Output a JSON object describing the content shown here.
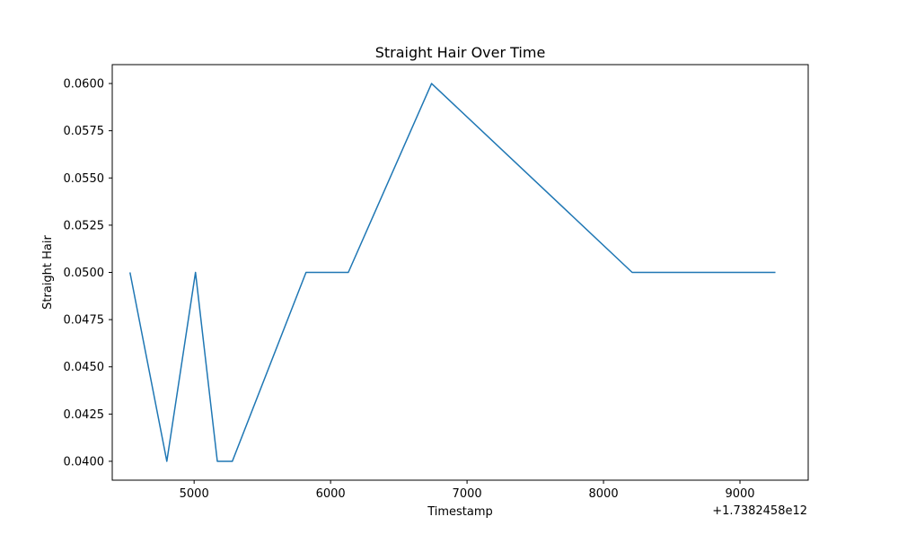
{
  "chart_data": {
    "type": "line",
    "title": "Straight Hair Over Time",
    "xlabel": "Timestamp",
    "ylabel": "Straight Hair",
    "x_offset_label": "+1.7382458e12",
    "xlim": [
      4400,
      9500
    ],
    "ylim": [
      0.039,
      0.061
    ],
    "x_ticks": [
      5000,
      6000,
      7000,
      8000,
      9000
    ],
    "x_tick_labels": [
      "5000",
      "6000",
      "7000",
      "8000",
      "9000"
    ],
    "y_ticks": [
      0.04,
      0.0425,
      0.045,
      0.0475,
      0.05,
      0.0525,
      0.055,
      0.0575,
      0.06
    ],
    "y_tick_labels": [
      "0.0400",
      "0.0425",
      "0.0450",
      "0.0475",
      "0.0500",
      "0.0525",
      "0.0550",
      "0.0575",
      "0.0600"
    ],
    "grid": false,
    "series": [
      {
        "color": "#1f77b4",
        "x": [
          4530,
          4800,
          5010,
          5170,
          5280,
          5820,
          6130,
          6740,
          8210,
          9260
        ],
        "y": [
          0.05,
          0.04,
          0.05,
          0.04,
          0.04,
          0.05,
          0.05,
          0.06,
          0.05,
          0.05
        ]
      }
    ]
  }
}
